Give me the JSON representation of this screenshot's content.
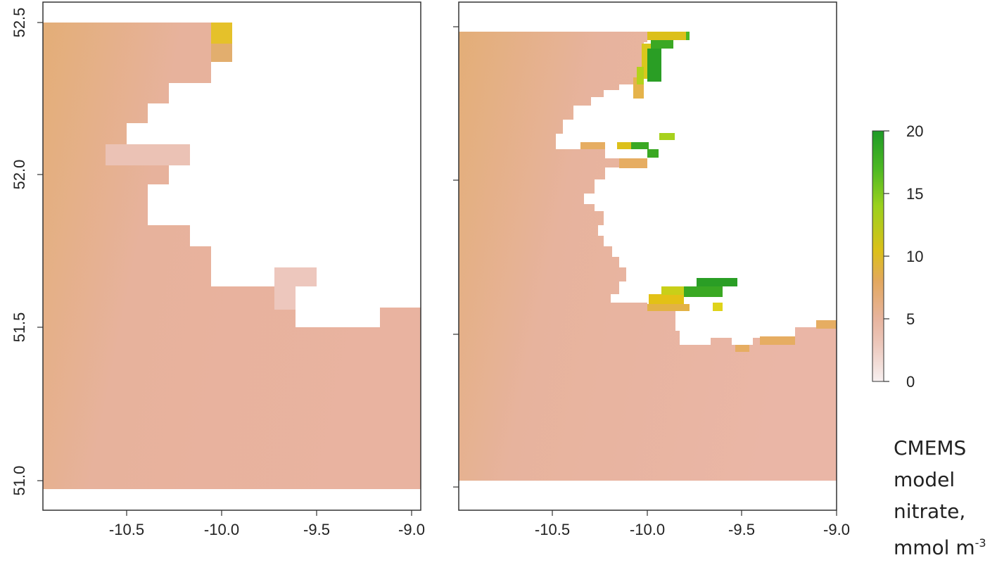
{
  "figure": {
    "panels": [
      {
        "id": "left",
        "y_ticks": [
          "52.5",
          "52.0",
          "51.5",
          "51.0"
        ],
        "x_ticks": [
          "-10.5",
          "-10.0",
          "-9.5",
          "-9.0"
        ]
      },
      {
        "id": "right",
        "y_ticks": [],
        "x_ticks": [
          "-10.5",
          "-10.0",
          "-9.5",
          "-9.0"
        ]
      }
    ],
    "colorbar": {
      "ticks": [
        "0",
        "5",
        "10",
        "15",
        "20"
      ],
      "range": [
        0,
        20
      ],
      "colors": [
        "#f7f0f0",
        "#e7b49e",
        "#e3a85f",
        "#dcc01a",
        "#7dcc1f",
        "#1e9a27"
      ]
    },
    "caption": {
      "line1": "CMEMS",
      "line2": "model",
      "line3": "nitrate,",
      "line4_prefix": "mmol m",
      "line4_sup": "-3"
    },
    "colors": {
      "ocean_base": "#e7b29c",
      "ocean_west": "#e6b07a",
      "nitrate_high": "#1e9a27",
      "nitrate_mid": "#dcc01a",
      "land": "#ffffff",
      "frame": "#333333"
    }
  }
}
